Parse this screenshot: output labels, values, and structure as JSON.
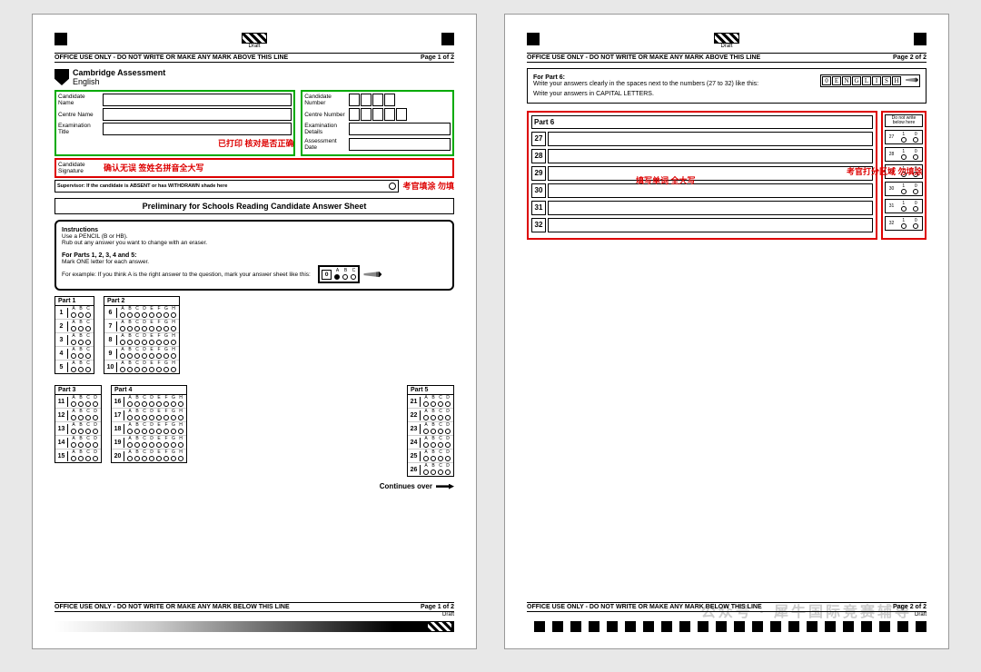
{
  "colors": {
    "annotation_red": "#d00",
    "highlight_green": "#0a0",
    "page_bg": "#fff"
  },
  "draft_label": "Draft",
  "office_top": "OFFICE USE ONLY - DO NOT WRITE OR MAKE ANY MARK ABOVE THIS LINE",
  "office_bottom": "OFFICE USE ONLY - DO NOT WRITE OR MAKE ANY MARK BELOW THIS LINE",
  "page1_num": "Page 1 of 2",
  "page2_num": "Page 2 of 2",
  "brand_line1": "Cambridge Assessment",
  "brand_line2": "English",
  "left_fields": [
    "Candidate Name",
    "Centre Name",
    "Examination Title"
  ],
  "right_fields": [
    "Candidate Number",
    "Centre Number",
    "Examination Details",
    "Assessment Date"
  ],
  "sig_label": "Candidate Signature",
  "red_note_printed": "已打印 核对是否正确",
  "red_note_sig": "确认无误 签姓名拼音全大写",
  "red_note_examiner": "考官填涂 勿填",
  "supervisor_text": "Supervisor: If the candidate is ABSENT or has WITHDRAWN shade here",
  "sheet_title": "Preliminary for Schools Reading Candidate Answer Sheet",
  "instr_title": "Instructions",
  "instr_l1": "Use a PENCIL (B or HB).",
  "instr_l2": "Rub out any answer you want to change with an eraser.",
  "instr_parts_title": "For Parts 1, 2, 3, 4 and 5:",
  "instr_l3": "Mark ONE letter for each answer.",
  "instr_l4": "For example: If you think A is the right answer to the question, mark your answer sheet like this:",
  "example_num": "0",
  "example_opts": [
    "A",
    "B",
    "C"
  ],
  "parts": {
    "p1": {
      "title": "Part 1",
      "cols": [
        "A",
        "B",
        "C"
      ],
      "q": [
        1,
        2,
        3,
        4,
        5
      ]
    },
    "p2": {
      "title": "Part 2",
      "cols": [
        "A",
        "B",
        "C",
        "D",
        "E",
        "F",
        "G",
        "H"
      ],
      "q": [
        6,
        7,
        8,
        9,
        10
      ]
    },
    "p3": {
      "title": "Part 3",
      "cols": [
        "A",
        "B",
        "C",
        "D"
      ],
      "q": [
        11,
        12,
        13,
        14,
        15
      ]
    },
    "p4": {
      "title": "Part 4",
      "cols": [
        "A",
        "B",
        "C",
        "D",
        "E",
        "F",
        "G",
        "H"
      ],
      "q": [
        16,
        17,
        18,
        19,
        20
      ]
    },
    "p5": {
      "title": "Part 5",
      "cols": [
        "A",
        "B",
        "C",
        "D"
      ],
      "q": [
        21,
        22,
        23,
        24,
        25,
        26
      ]
    }
  },
  "continues": "Continues over",
  "p6_hdr": "For Part 6:",
  "p6_l1": "Write your answers clearly in the spaces next to the numbers (27 to 32) like this:",
  "p6_l2": "Write your answers in CAPITAL LETTERS.",
  "p6_sample_num": "0",
  "p6_sample": [
    "E",
    "N",
    "G",
    "L",
    "I",
    "S",
    "H"
  ],
  "p6_title": "Part 6",
  "p6_q": [
    27,
    28,
    29,
    30,
    31,
    32
  ],
  "red_note_fill": "填写单词 全大写",
  "red_note_score": "考官打分区域 勿填涂",
  "score_hdr": "Do not write below here",
  "score_labels": [
    "1",
    "0"
  ],
  "watermark": "公众号 · 犀牛国际竞赛辅导"
}
